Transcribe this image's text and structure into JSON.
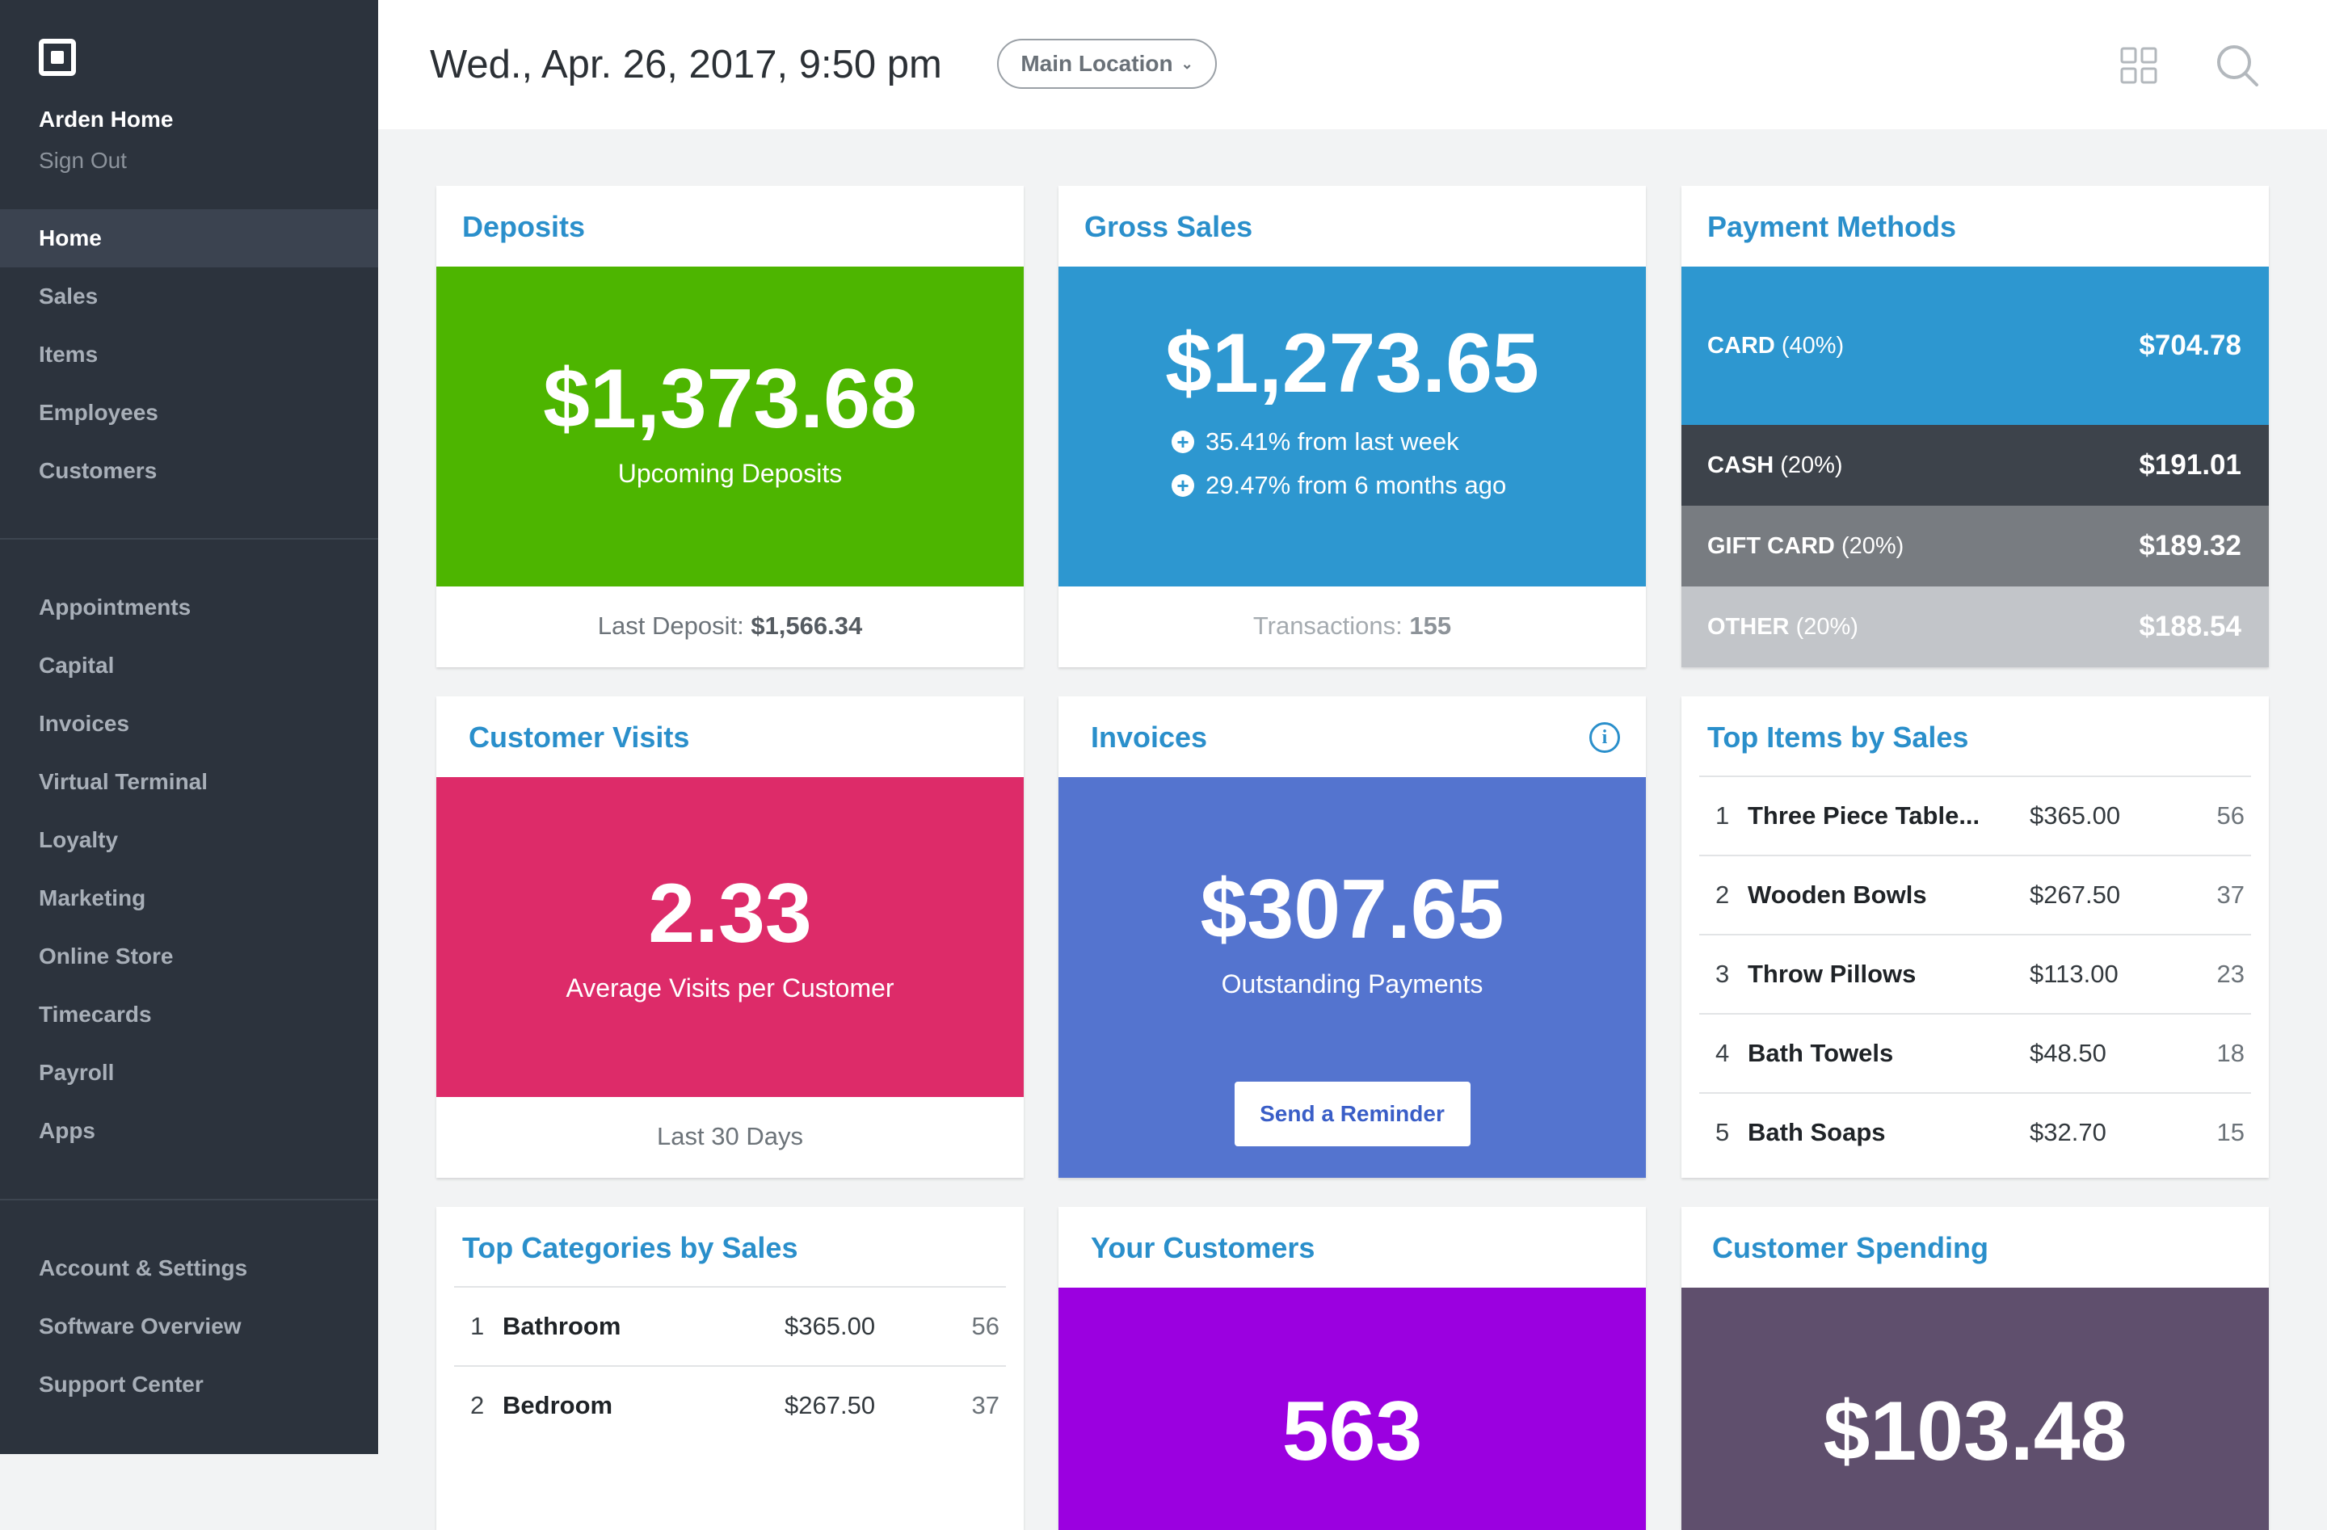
{
  "sidebar": {
    "account_name": "Arden Home",
    "sign_out": "Sign Out",
    "primary": [
      {
        "id": "home",
        "label": "Home"
      },
      {
        "id": "sales",
        "label": "Sales"
      },
      {
        "id": "items",
        "label": "Items"
      },
      {
        "id": "employees",
        "label": "Employees"
      },
      {
        "id": "customers",
        "label": "Customers"
      }
    ],
    "secondary": [
      {
        "id": "appointments",
        "label": "Appointments"
      },
      {
        "id": "capital",
        "label": "Capital"
      },
      {
        "id": "invoices",
        "label": "Invoices"
      },
      {
        "id": "virtual-terminal",
        "label": "Virtual Terminal"
      },
      {
        "id": "loyalty",
        "label": "Loyalty"
      },
      {
        "id": "marketing",
        "label": "Marketing"
      },
      {
        "id": "online-store",
        "label": "Online Store"
      },
      {
        "id": "timecards",
        "label": "Timecards"
      },
      {
        "id": "payroll",
        "label": "Payroll"
      },
      {
        "id": "apps",
        "label": "Apps"
      }
    ],
    "footer": [
      {
        "id": "account-settings",
        "label": "Account & Settings"
      },
      {
        "id": "software-overview",
        "label": "Software Overview"
      },
      {
        "id": "support-center",
        "label": "Support Center"
      }
    ],
    "active": "Home"
  },
  "header": {
    "date": "Wed., Apr. 26, 2017, 9:50 pm",
    "location": "Main Location"
  },
  "colors": {
    "accent": "#2a8fcb",
    "deposits": "#4db500",
    "gross_sales": "#2d97d0",
    "customer_visits": "#dd2b69",
    "invoices": "#5474cf",
    "your_customers": "#9b00e0",
    "customer_spending": "#5f4f6d"
  },
  "deposits": {
    "title": "Deposits",
    "amount": "$1,373.68",
    "subtitle": "Upcoming Deposits",
    "footer_label": "Last Deposit:",
    "footer_value": "$1,566.34"
  },
  "gross_sales": {
    "title": "Gross Sales",
    "amount": "$1,273.65",
    "growth": [
      "35.41% from last week",
      "29.47% from 6 months ago"
    ],
    "footer_label": "Transactions:",
    "footer_value": "155"
  },
  "payment_methods": {
    "title": "Payment Methods",
    "rows": [
      {
        "name": "CARD",
        "pct": "(40%)",
        "value": "$704.78",
        "color": "#2d97d0"
      },
      {
        "name": "CASH",
        "pct": "(20%)",
        "value": "$191.01",
        "color": "#3d434b"
      },
      {
        "name": "GIFT CARD",
        "pct": "(20%)",
        "value": "$189.32",
        "color": "#787c81"
      },
      {
        "name": "OTHER",
        "pct": "(20%)",
        "value": "$188.54",
        "color": "#c2c5c9"
      }
    ]
  },
  "customer_visits": {
    "title": "Customer Visits",
    "value": "2.33",
    "subtitle": "Average Visits per Customer",
    "footer": "Last 30 Days"
  },
  "invoices": {
    "title": "Invoices",
    "amount": "$307.65",
    "subtitle": "Outstanding Payments",
    "button": "Send a Reminder"
  },
  "top_items": {
    "title": "Top Items by Sales",
    "rows": [
      {
        "rank": "1",
        "name": "Three Piece Table...",
        "amount": "$365.00",
        "qty": "56"
      },
      {
        "rank": "2",
        "name": "Wooden Bowls",
        "amount": "$267.50",
        "qty": "37"
      },
      {
        "rank": "3",
        "name": "Throw Pillows",
        "amount": "$113.00",
        "qty": "23"
      },
      {
        "rank": "4",
        "name": "Bath Towels",
        "amount": "$48.50",
        "qty": "18"
      },
      {
        "rank": "5",
        "name": "Bath Soaps",
        "amount": "$32.70",
        "qty": "15"
      }
    ]
  },
  "top_categories": {
    "title": "Top Categories by Sales",
    "rows": [
      {
        "rank": "1",
        "name": "Bathroom",
        "amount": "$365.00",
        "qty": "56"
      },
      {
        "rank": "2",
        "name": "Bedroom",
        "amount": "$267.50",
        "qty": "37"
      }
    ]
  },
  "your_customers": {
    "title": "Your Customers",
    "value": "563"
  },
  "customer_spending": {
    "title": "Customer Spending",
    "amount": "$103.48"
  }
}
